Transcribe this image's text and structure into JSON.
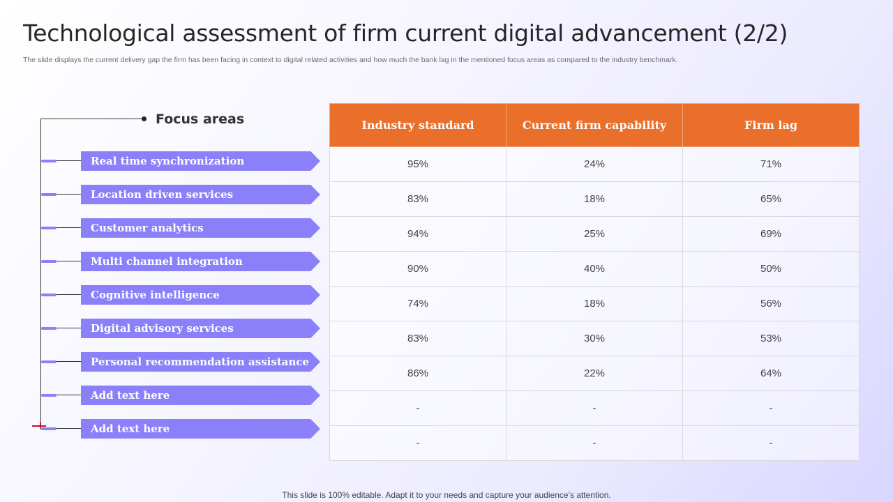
{
  "slide": {
    "title": "Technological assessment of firm current digital advancement (2/2)",
    "subtitle": "The slide displays the current delivery gap the firm has been facing in context to digital related activities and how much the bank lag in the mentioned focus areas as compared to the industry benchmark.",
    "footer": "This slide is 100% editable. Adapt it to your needs and capture your audience’s attention."
  },
  "focus": {
    "heading": "Focus areas",
    "items": [
      "Real time synchronization",
      "Location driven services",
      "Customer analytics",
      "Multi channel integration",
      "Cognitive intelligence",
      "Digital advisory services",
      "Personal recommendation assistance",
      "Add text here",
      "Add text here"
    ]
  },
  "table": {
    "headers": [
      "Industry standard",
      "Current firm capability",
      "Firm lag"
    ],
    "rows": [
      [
        "95%",
        "24%",
        "71%"
      ],
      [
        "83%",
        "18%",
        "65%"
      ],
      [
        "94%",
        "25%",
        "69%"
      ],
      [
        "90%",
        "40%",
        "50%"
      ],
      [
        "74%",
        "18%",
        "56%"
      ],
      [
        "83%",
        "30%",
        "53%"
      ],
      [
        "86%",
        "22%",
        "64%"
      ],
      [
        "-",
        "-",
        "-"
      ],
      [
        "-",
        "-",
        "-"
      ]
    ]
  },
  "colors": {
    "accent_purple": "#8b80f9",
    "header_orange": "#e96f2b"
  }
}
